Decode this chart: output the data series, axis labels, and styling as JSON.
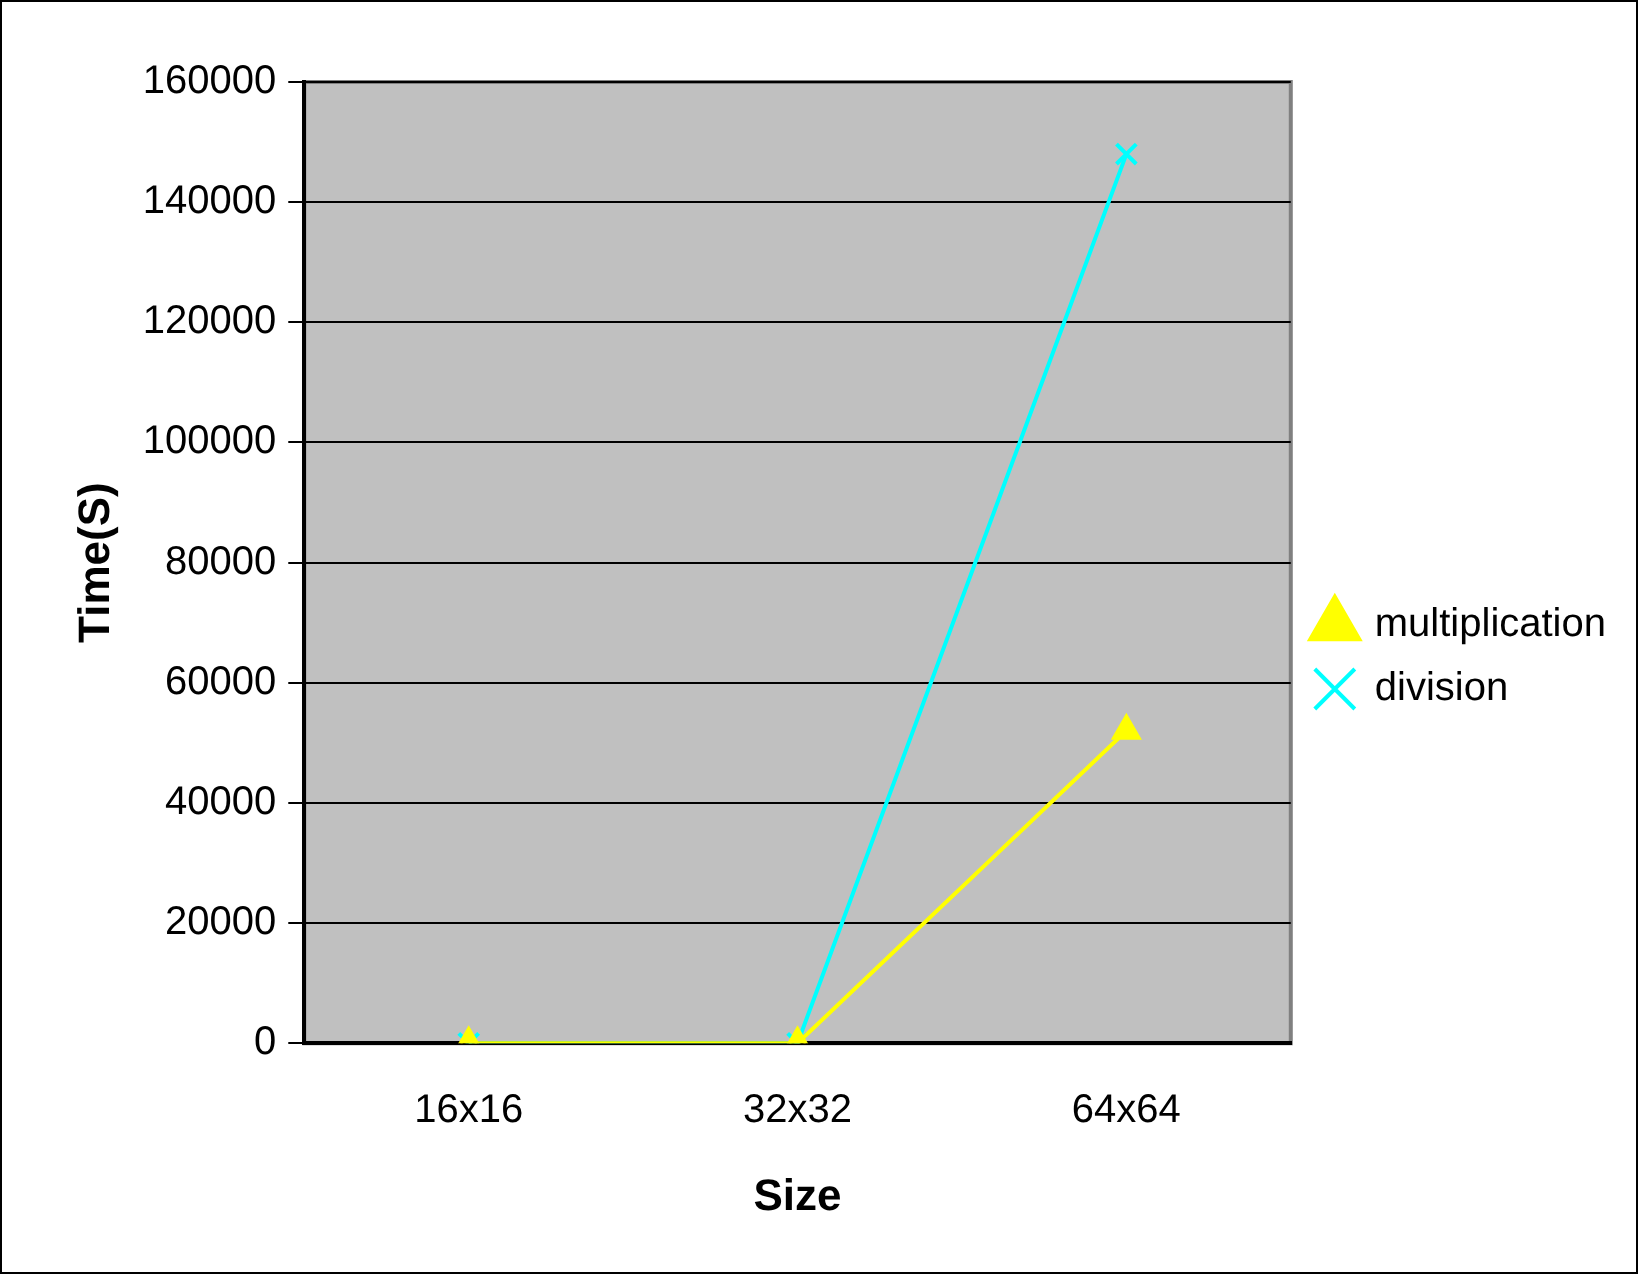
{
  "chart_data": {
    "type": "line",
    "xlabel": "Size",
    "ylabel": "Time(S)",
    "categories": [
      "16x16",
      "32x32",
      "64x64"
    ],
    "series": [
      {
        "name": "multiplication",
        "color": "#ffff00",
        "marker": "triangle",
        "values": [
          0,
          0,
          52000
        ]
      },
      {
        "name": "division",
        "color": "#00ffff",
        "marker": "cross",
        "values": [
          0,
          0,
          148000
        ]
      }
    ],
    "ylim": [
      0,
      160000
    ],
    "yticks": [
      0,
      20000,
      40000,
      60000,
      80000,
      100000,
      120000,
      140000,
      160000
    ],
    "grid": "y",
    "legend": "right"
  }
}
